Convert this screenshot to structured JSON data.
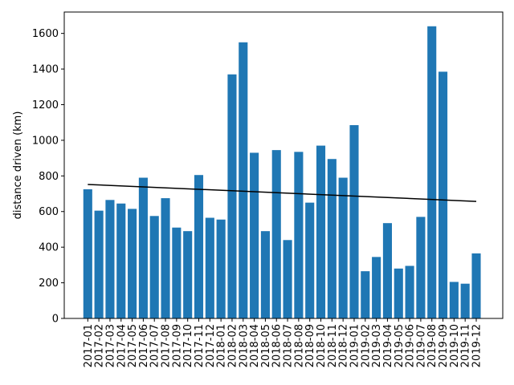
{
  "chart_data": {
    "type": "bar",
    "ylabel": "distance driven (km)",
    "xlabel": "",
    "ylim": [
      0,
      1720
    ],
    "yticks": [
      0,
      200,
      400,
      600,
      800,
      1000,
      1200,
      1400,
      1600
    ],
    "bar_color": "#1f77b4",
    "trend_color": "#000000",
    "grid": false,
    "categories": [
      "2017-01",
      "2017-02",
      "2017-03",
      "2017-04",
      "2017-05",
      "2017-06",
      "2017-07",
      "2017-08",
      "2017-09",
      "2017-10",
      "2017-11",
      "2017-12",
      "2018-01",
      "2018-02",
      "2018-03",
      "2018-04",
      "2018-05",
      "2018-06",
      "2018-07",
      "2018-08",
      "2018-09",
      "2018-10",
      "2018-11",
      "2018-12",
      "2019-01",
      "2019-02",
      "2019-03",
      "2019-04",
      "2019-05",
      "2019-06",
      "2019-07",
      "2019-08",
      "2019-09",
      "2019-10",
      "2019-11",
      "2019-12"
    ],
    "values": [
      725,
      605,
      665,
      645,
      615,
      790,
      575,
      675,
      510,
      490,
      805,
      565,
      555,
      1370,
      1550,
      930,
      490,
      945,
      440,
      935,
      650,
      970,
      895,
      790,
      1085,
      265,
      345,
      535,
      280,
      295,
      570,
      1640,
      1385,
      205,
      195,
      365
    ],
    "trend_line": {
      "start": 752,
      "end": 657
    }
  }
}
